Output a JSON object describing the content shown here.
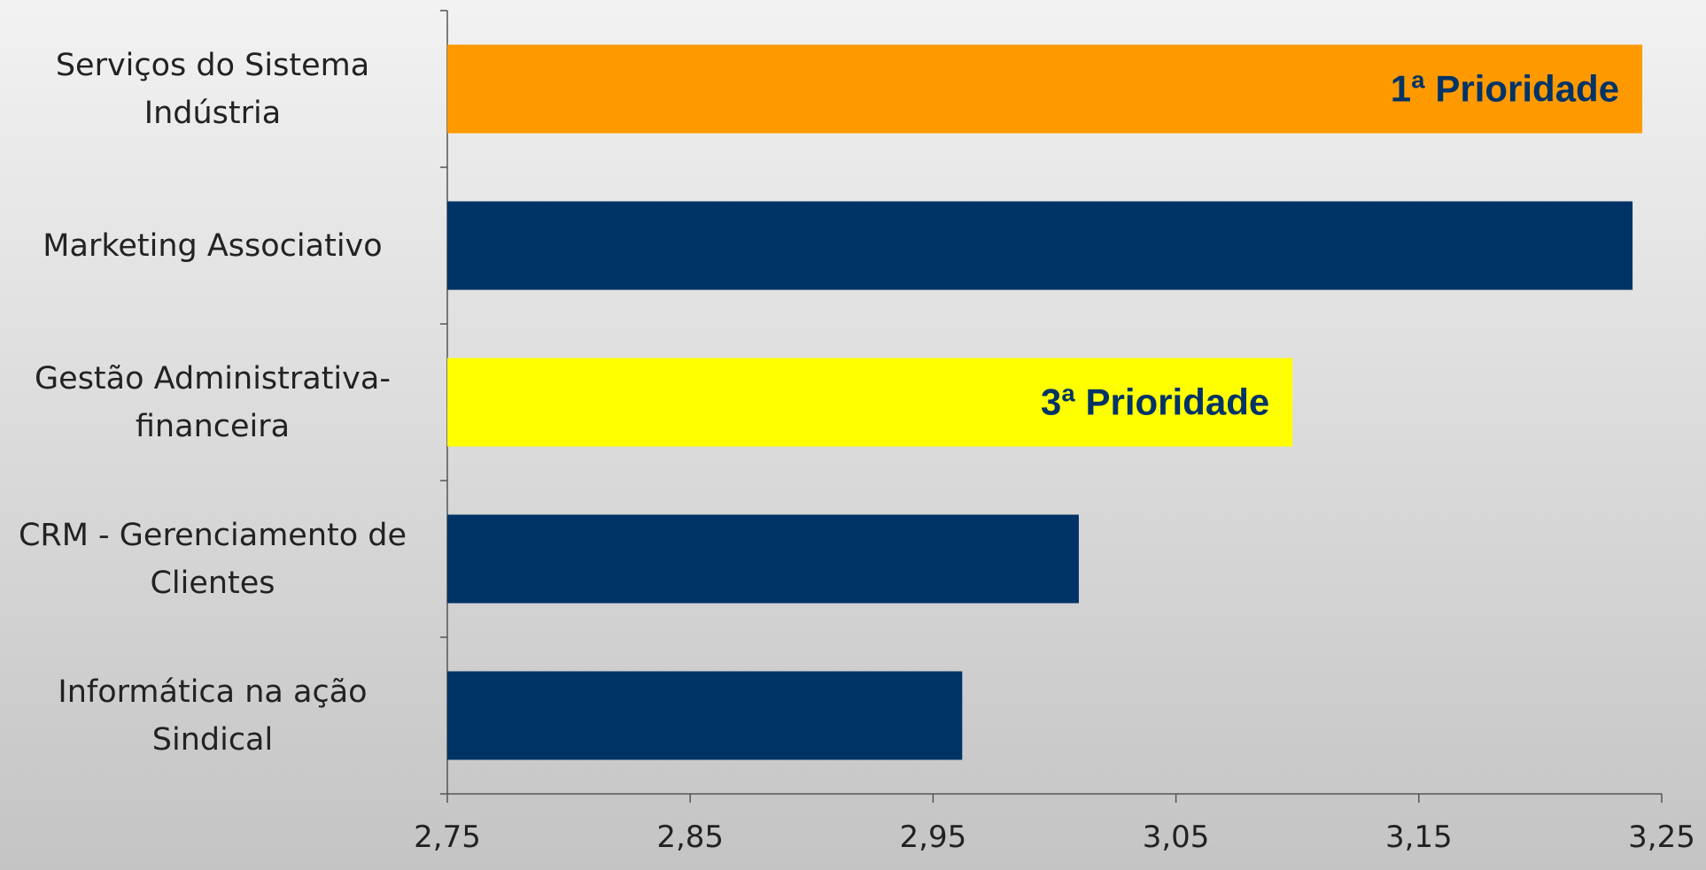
{
  "chart_data": {
    "type": "barh",
    "categories": [
      "Serviços do Sistema\nIndústria",
      "Marketing Associativo",
      "Gestão Administrativa-\nfinanceira",
      "CRM - Gerenciamento de\nClientes",
      "Informática na ação\nSindical"
    ],
    "values": [
      3.242,
      3.238,
      3.098,
      3.01,
      2.962
    ],
    "colors": [
      "#ff9900",
      "#003366",
      "#ffff00",
      "#003366",
      "#003366"
    ],
    "annotations": [
      "1ª Prioridade",
      null,
      "3ª Prioridade",
      null,
      null
    ],
    "xlim": [
      2.75,
      3.25
    ],
    "xticks": [
      {
        "value": 2.75,
        "label": "2,75"
      },
      {
        "value": 2.85,
        "label": "2,85"
      },
      {
        "value": 2.95,
        "label": "2,95"
      },
      {
        "value": 3.05,
        "label": "3,05"
      },
      {
        "value": 3.15,
        "label": "3,15"
      },
      {
        "value": 3.25,
        "label": "3,25"
      }
    ],
    "grid": false
  }
}
